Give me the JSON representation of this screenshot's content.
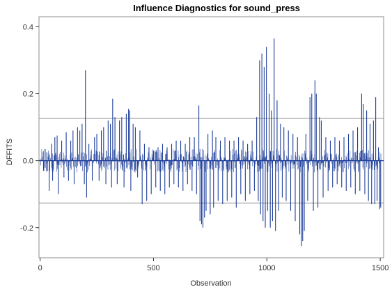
{
  "chart_data": {
    "type": "needle",
    "title": "Influence Diagnostics for sound_press",
    "xlabel": "Observation",
    "ylabel": "DFFITS",
    "xlim": [
      -5,
      1515
    ],
    "ylim": [
      -0.29,
      0.43
    ],
    "xticks": [
      0,
      500,
      1000,
      1500
    ],
    "yticks": [
      -0.2,
      0.0,
      0.2,
      0.4
    ],
    "ytick_labels": [
      "-0.2",
      "0.0",
      "0.2",
      "0.4"
    ],
    "reference_lines": [
      0.1265,
      -0.1265
    ],
    "n_observations": 1503,
    "series_color": "#1f3f9a",
    "reference_line_color": "#8c8c8c",
    "spikes": [
      {
        "x": 15,
        "y": -0.03
      },
      {
        "x": 30,
        "y": 0.025
      },
      {
        "x": 40,
        "y": -0.09
      },
      {
        "x": 50,
        "y": 0.05
      },
      {
        "x": 55,
        "y": -0.06
      },
      {
        "x": 65,
        "y": 0.07
      },
      {
        "x": 75,
        "y": 0.075
      },
      {
        "x": 80,
        "y": -0.1
      },
      {
        "x": 95,
        "y": 0.06
      },
      {
        "x": 105,
        "y": -0.05
      },
      {
        "x": 115,
        "y": 0.085
      },
      {
        "x": 125,
        "y": -0.06
      },
      {
        "x": 135,
        "y": 0.06
      },
      {
        "x": 145,
        "y": 0.09
      },
      {
        "x": 150,
        "y": -0.07
      },
      {
        "x": 165,
        "y": 0.1
      },
      {
        "x": 175,
        "y": 0.09
      },
      {
        "x": 185,
        "y": 0.11
      },
      {
        "x": 195,
        "y": -0.07
      },
      {
        "x": 200,
        "y": 0.27
      },
      {
        "x": 205,
        "y": -0.11
      },
      {
        "x": 215,
        "y": 0.05
      },
      {
        "x": 230,
        "y": -0.06
      },
      {
        "x": 240,
        "y": 0.07
      },
      {
        "x": 250,
        "y": 0.08
      },
      {
        "x": 260,
        "y": -0.06
      },
      {
        "x": 270,
        "y": 0.09
      },
      {
        "x": 280,
        "y": 0.1
      },
      {
        "x": 290,
        "y": -0.07
      },
      {
        "x": 300,
        "y": 0.12
      },
      {
        "x": 310,
        "y": 0.11
      },
      {
        "x": 315,
        "y": -0.08
      },
      {
        "x": 320,
        "y": 0.185
      },
      {
        "x": 330,
        "y": 0.13
      },
      {
        "x": 340,
        "y": -0.07
      },
      {
        "x": 350,
        "y": 0.12
      },
      {
        "x": 360,
        "y": 0.13
      },
      {
        "x": 370,
        "y": -0.08
      },
      {
        "x": 380,
        "y": 0.14
      },
      {
        "x": 390,
        "y": 0.155
      },
      {
        "x": 395,
        "y": 0.15
      },
      {
        "x": 400,
        "y": -0.09
      },
      {
        "x": 410,
        "y": 0.11
      },
      {
        "x": 420,
        "y": 0.1
      },
      {
        "x": 430,
        "y": -0.05
      },
      {
        "x": 440,
        "y": 0.09
      },
      {
        "x": 450,
        "y": -0.13
      },
      {
        "x": 460,
        "y": 0.05
      },
      {
        "x": 470,
        "y": -0.12
      },
      {
        "x": 480,
        "y": 0.04
      },
      {
        "x": 490,
        "y": -0.1
      },
      {
        "x": 500,
        "y": 0.03
      },
      {
        "x": 510,
        "y": -0.08
      },
      {
        "x": 520,
        "y": 0.04
      },
      {
        "x": 530,
        "y": -0.09
      },
      {
        "x": 540,
        "y": 0.05
      },
      {
        "x": 550,
        "y": -0.1
      },
      {
        "x": 560,
        "y": 0.04
      },
      {
        "x": 570,
        "y": -0.08
      },
      {
        "x": 580,
        "y": 0.05
      },
      {
        "x": 590,
        "y": -0.07
      },
      {
        "x": 600,
        "y": 0.06
      },
      {
        "x": 610,
        "y": -0.08
      },
      {
        "x": 620,
        "y": 0.06
      },
      {
        "x": 630,
        "y": -0.09
      },
      {
        "x": 640,
        "y": 0.05
      },
      {
        "x": 650,
        "y": -0.07
      },
      {
        "x": 660,
        "y": 0.07
      },
      {
        "x": 670,
        "y": -0.09
      },
      {
        "x": 680,
        "y": 0.07
      },
      {
        "x": 690,
        "y": -0.1
      },
      {
        "x": 700,
        "y": 0.165
      },
      {
        "x": 705,
        "y": -0.18
      },
      {
        "x": 712,
        "y": -0.19
      },
      {
        "x": 718,
        "y": -0.2
      },
      {
        "x": 725,
        "y": -0.17
      },
      {
        "x": 732,
        "y": -0.15
      },
      {
        "x": 740,
        "y": 0.08
      },
      {
        "x": 750,
        "y": -0.16
      },
      {
        "x": 760,
        "y": 0.09
      },
      {
        "x": 765,
        "y": -0.14
      },
      {
        "x": 775,
        "y": 0.07
      },
      {
        "x": 785,
        "y": -0.12
      },
      {
        "x": 795,
        "y": 0.06
      },
      {
        "x": 805,
        "y": -0.13
      },
      {
        "x": 815,
        "y": 0.07
      },
      {
        "x": 825,
        "y": -0.12
      },
      {
        "x": 835,
        "y": 0.06
      },
      {
        "x": 845,
        "y": -0.11
      },
      {
        "x": 855,
        "y": 0.06
      },
      {
        "x": 865,
        "y": -0.14
      },
      {
        "x": 875,
        "y": 0.07
      },
      {
        "x": 885,
        "y": -0.1
      },
      {
        "x": 895,
        "y": 0.06
      },
      {
        "x": 905,
        "y": -0.12
      },
      {
        "x": 915,
        "y": 0.05
      },
      {
        "x": 925,
        "y": -0.1
      },
      {
        "x": 935,
        "y": 0.06
      },
      {
        "x": 945,
        "y": -0.09
      },
      {
        "x": 955,
        "y": 0.13
      },
      {
        "x": 962,
        "y": -0.12
      },
      {
        "x": 968,
        "y": 0.3
      },
      {
        "x": 972,
        "y": -0.16
      },
      {
        "x": 978,
        "y": 0.32
      },
      {
        "x": 983,
        "y": -0.18
      },
      {
        "x": 988,
        "y": 0.28
      },
      {
        "x": 993,
        "y": -0.2
      },
      {
        "x": 998,
        "y": 0.34
      },
      {
        "x": 1003,
        "y": -0.15
      },
      {
        "x": 1010,
        "y": 0.2
      },
      {
        "x": 1015,
        "y": -0.2
      },
      {
        "x": 1020,
        "y": 0.15
      },
      {
        "x": 1025,
        "y": -0.18
      },
      {
        "x": 1032,
        "y": 0.365
      },
      {
        "x": 1038,
        "y": -0.21
      },
      {
        "x": 1045,
        "y": 0.18
      },
      {
        "x": 1052,
        "y": -0.15
      },
      {
        "x": 1060,
        "y": 0.11
      },
      {
        "x": 1068,
        "y": -0.11
      },
      {
        "x": 1075,
        "y": 0.1
      },
      {
        "x": 1085,
        "y": -0.12
      },
      {
        "x": 1095,
        "y": 0.09
      },
      {
        "x": 1105,
        "y": -0.15
      },
      {
        "x": 1115,
        "y": 0.08
      },
      {
        "x": 1125,
        "y": -0.18
      },
      {
        "x": 1135,
        "y": 0.07
      },
      {
        "x": 1145,
        "y": -0.22
      },
      {
        "x": 1152,
        "y": -0.255
      },
      {
        "x": 1158,
        "y": -0.24
      },
      {
        "x": 1165,
        "y": -0.21
      },
      {
        "x": 1172,
        "y": 0.08
      },
      {
        "x": 1180,
        "y": -0.12
      },
      {
        "x": 1190,
        "y": 0.19
      },
      {
        "x": 1198,
        "y": 0.2
      },
      {
        "x": 1205,
        "y": -0.15
      },
      {
        "x": 1212,
        "y": 0.24
      },
      {
        "x": 1218,
        "y": 0.2
      },
      {
        "x": 1225,
        "y": -0.14
      },
      {
        "x": 1232,
        "y": 0.13
      },
      {
        "x": 1240,
        "y": 0.12
      },
      {
        "x": 1248,
        "y": -0.11
      },
      {
        "x": 1260,
        "y": 0.07
      },
      {
        "x": 1270,
        "y": -0.09
      },
      {
        "x": 1280,
        "y": 0.06
      },
      {
        "x": 1290,
        "y": -0.08
      },
      {
        "x": 1300,
        "y": 0.07
      },
      {
        "x": 1310,
        "y": -0.07
      },
      {
        "x": 1320,
        "y": 0.06
      },
      {
        "x": 1330,
        "y": -0.08
      },
      {
        "x": 1340,
        "y": 0.07
      },
      {
        "x": 1350,
        "y": -0.09
      },
      {
        "x": 1360,
        "y": 0.08
      },
      {
        "x": 1370,
        "y": -0.08
      },
      {
        "x": 1380,
        "y": 0.09
      },
      {
        "x": 1390,
        "y": -0.1
      },
      {
        "x": 1400,
        "y": 0.1
      },
      {
        "x": 1410,
        "y": -0.09
      },
      {
        "x": 1418,
        "y": 0.2
      },
      {
        "x": 1425,
        "y": 0.17
      },
      {
        "x": 1432,
        "y": -0.1
      },
      {
        "x": 1440,
        "y": 0.15
      },
      {
        "x": 1448,
        "y": -0.12
      },
      {
        "x": 1455,
        "y": 0.11
      },
      {
        "x": 1462,
        "y": -0.13
      },
      {
        "x": 1470,
        "y": 0.12
      },
      {
        "x": 1476,
        "y": -0.13
      },
      {
        "x": 1480,
        "y": 0.19
      },
      {
        "x": 1486,
        "y": -0.12
      },
      {
        "x": 1492,
        "y": 0.04
      },
      {
        "x": 1498,
        "y": -0.145
      },
      {
        "x": 1502,
        "y": -0.14
      }
    ]
  }
}
